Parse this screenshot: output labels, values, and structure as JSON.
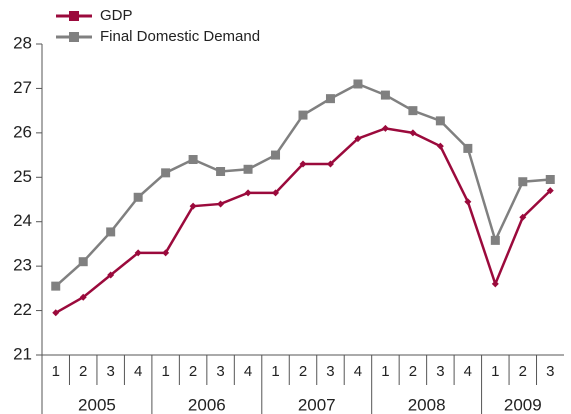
{
  "chart_data": {
    "type": "line",
    "groups": [
      {
        "label": "2005",
        "categories": [
          "1",
          "2",
          "3",
          "4"
        ]
      },
      {
        "label": "2006",
        "categories": [
          "1",
          "2",
          "3",
          "4"
        ]
      },
      {
        "label": "2007",
        "categories": [
          "1",
          "2",
          "3",
          "4"
        ]
      },
      {
        "label": "2008",
        "categories": [
          "1",
          "2",
          "3",
          "4"
        ]
      },
      {
        "label": "2009",
        "categories": [
          "1",
          "2",
          "3"
        ]
      }
    ],
    "series": [
      {
        "name": "GDP",
        "color": "#9b0a3c",
        "marker": "diamond",
        "values": [
          21.95,
          22.3,
          22.8,
          23.3,
          23.3,
          24.35,
          24.4,
          24.65,
          24.65,
          25.3,
          25.3,
          25.87,
          26.1,
          26.0,
          25.7,
          24.45,
          22.6,
          24.1,
          24.7
        ]
      },
      {
        "name": "Final Domestic Demand",
        "color": "#808080",
        "marker": "square",
        "values": [
          22.55,
          23.1,
          23.77,
          24.55,
          25.1,
          25.4,
          25.13,
          25.18,
          25.5,
          26.4,
          26.77,
          27.1,
          26.85,
          26.5,
          26.27,
          25.65,
          23.58,
          24.9,
          24.95
        ]
      }
    ],
    "ylim": [
      21,
      28
    ],
    "yticks": [
      21,
      22,
      23,
      24,
      25,
      26,
      27,
      28
    ]
  }
}
